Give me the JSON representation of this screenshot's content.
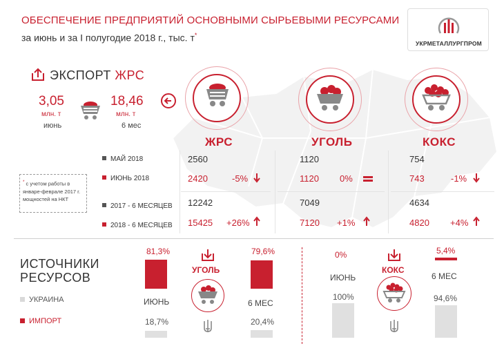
{
  "header": {
    "title": "ОБЕСПЕЧЕНИЕ ПРЕДПРИЯТИЙ ОСНОВНЫМИ СЫРЬЕВЫМИ РЕСУРСАМИ",
    "subtitle": "за июнь и за I полугодие 2018 г.,  тыс. т",
    "subtitle_mark": "*",
    "logo_name": "УКРМЕТАЛЛУРГПРОМ"
  },
  "export": {
    "title_prefix": "ЭКСПОРТ ",
    "title_res": "ЖРС",
    "june_value": "3,05",
    "june_unit": "млн. т",
    "june_label": "июнь",
    "half_value": "18,46",
    "half_unit": "млн. т",
    "half_label": "6 мес"
  },
  "resources": [
    "ЖРС",
    "УГОЛЬ",
    "КОКС"
  ],
  "table": {
    "rows": [
      "МАЙ 2018",
      "ИЮНЬ 2018",
      "2017 - 6 МЕСЯЦЕВ",
      "2018 - 6 МЕСЯЦЕВ"
    ],
    "zrs": {
      "may": "2560",
      "june": "2420",
      "june_pct": "-5%",
      "h2017": "12242",
      "h2018": "15425",
      "h_pct": "+26%"
    },
    "coal": {
      "may": "1120",
      "june": "1120",
      "june_pct": "0%",
      "h2017": "7049",
      "h2018": "7120",
      "h_pct": "+1%"
    },
    "coke": {
      "may": "754",
      "june": "743",
      "june_pct": "-1%",
      "h2017": "4634",
      "h2018": "4820",
      "h_pct": "+4%"
    }
  },
  "note": "с учетом работы в январе-феврале 2017 г. мощностей на НКТ",
  "note_mark": "*",
  "sources": {
    "title_line1": "ИСТОЧНИКИ",
    "title_line2": "РЕСУРСОВ",
    "legend_ukraine": "УКРАИНА",
    "legend_import": "ИМПОРТ",
    "coal": {
      "label": "УГОЛЬ",
      "june_label": "ИЮНЬ",
      "half_label": "6 МЕС",
      "june_import": "81,3%",
      "june_ukraine": "18,7%",
      "half_import": "79,6%",
      "half_ukraine": "20,4%",
      "june_import_frac": 0.813,
      "half_import_frac": 0.796
    },
    "coke": {
      "label": "КОКС",
      "june_label": "ИЮНЬ",
      "half_label": "6 МЕС",
      "june_import": "0%",
      "june_ukraine": "100%",
      "half_import": "5,4%",
      "half_ukraine": "94,6%",
      "june_import_frac": 0.0,
      "half_import_frac": 0.054
    }
  },
  "colors": {
    "accent": "#c8202f",
    "gray": "#555555",
    "light": "#e0e0e0"
  }
}
